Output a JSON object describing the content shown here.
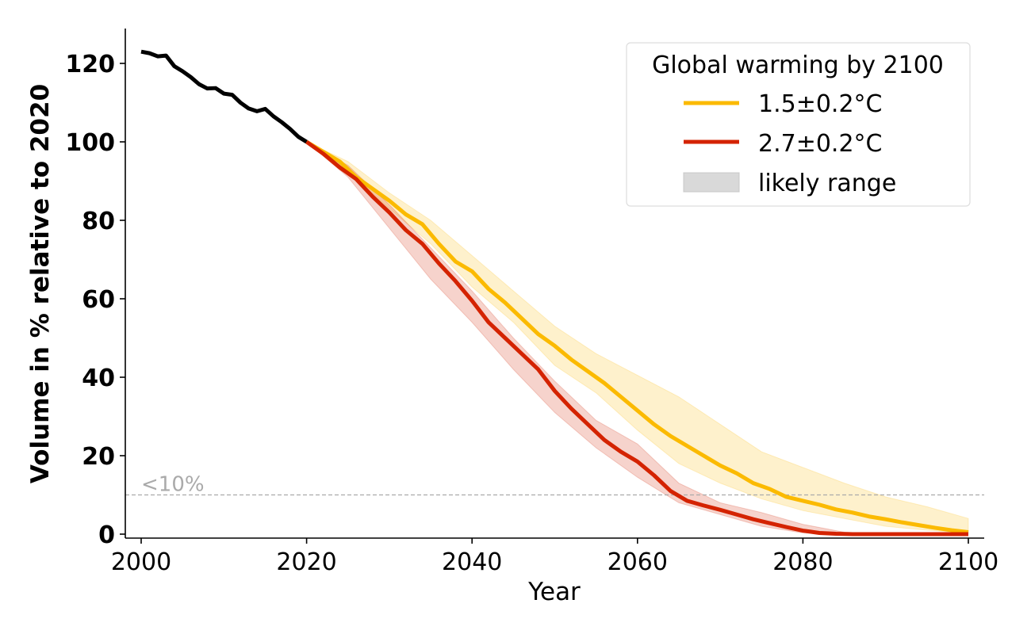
{
  "chart_data": {
    "type": "line",
    "title": "",
    "xlabel": "Year",
    "ylabel": "Volume in % relative to 2020",
    "xlim": [
      1998,
      2102
    ],
    "ylim": [
      -1,
      129
    ],
    "xticks": [
      2000,
      2020,
      2040,
      2060,
      2080,
      2100
    ],
    "yticks": [
      0,
      20,
      40,
      60,
      80,
      100,
      120
    ],
    "grid": false,
    "legend": {
      "title": "Global warming by 2100",
      "placement": "top-right",
      "entries": [
        "1.5±0.2°C",
        "2.7±0.2°C",
        "likely range"
      ]
    },
    "threshold": {
      "value": 10,
      "label": "<10%",
      "color": "#aaaaaa"
    },
    "historical": {
      "color": "#000000",
      "x": [
        2000,
        2001,
        2002,
        2003,
        2004,
        2005,
        2006,
        2007,
        2008,
        2009,
        2010,
        2011,
        2012,
        2013,
        2014,
        2015,
        2016,
        2017,
        2018,
        2019,
        2020
      ],
      "y": [
        123,
        122.6,
        121.8,
        122,
        119.3,
        118,
        116.5,
        114.7,
        113.6,
        113.7,
        112.3,
        112,
        110,
        108.5,
        107.8,
        108.4,
        106.5,
        105,
        103.3,
        101.3,
        100
      ]
    },
    "series": [
      {
        "name": "1.5±0.2°C",
        "color": "#FBBA00",
        "x": [
          2020,
          2022,
          2024,
          2026,
          2028,
          2030,
          2032,
          2034,
          2036,
          2038,
          2040,
          2042,
          2044,
          2046,
          2048,
          2050,
          2052,
          2054,
          2056,
          2058,
          2060,
          2062,
          2064,
          2066,
          2068,
          2070,
          2072,
          2074,
          2076,
          2078,
          2080,
          2082,
          2084,
          2086,
          2088,
          2090,
          2092,
          2094,
          2096,
          2098,
          2100
        ],
        "y": [
          100,
          97.5,
          95,
          91,
          88,
          85,
          81.5,
          79,
          74,
          69.5,
          67,
          62.5,
          59,
          55,
          51,
          48,
          44.5,
          41.5,
          38.5,
          35,
          31.5,
          28,
          25,
          22.5,
          20,
          17.5,
          15.5,
          13,
          11.5,
          9.5,
          8.5,
          7.5,
          6.3,
          5.5,
          4.5,
          3.8,
          3,
          2.3,
          1.6,
          1,
          0.5
        ],
        "range": {
          "x": [
            2020,
            2025,
            2030,
            2035,
            2040,
            2045,
            2050,
            2055,
            2060,
            2065,
            2070,
            2075,
            2080,
            2085,
            2090,
            2095,
            2100
          ],
          "upper": [
            100,
            95,
            87,
            80,
            71,
            62,
            53,
            46,
            40.5,
            35,
            28,
            21,
            17,
            13,
            9.5,
            7,
            4
          ],
          "lower": [
            100,
            92.5,
            83,
            74,
            63,
            54,
            43,
            36,
            26.5,
            18,
            13,
            9,
            6,
            4,
            2,
            1,
            0.2
          ]
        }
      },
      {
        "name": "2.7±0.2°C",
        "color": "#D42300",
        "x": [
          2020,
          2022,
          2024,
          2026,
          2028,
          2030,
          2032,
          2034,
          2036,
          2038,
          2040,
          2042,
          2044,
          2046,
          2048,
          2050,
          2052,
          2054,
          2056,
          2058,
          2060,
          2062,
          2064,
          2066,
          2068,
          2070,
          2072,
          2074,
          2076,
          2078,
          2080,
          2082,
          2084,
          2086,
          2088,
          2090,
          2092,
          2094,
          2096,
          2098,
          2100
        ],
        "y": [
          100,
          97,
          93.5,
          90.5,
          86,
          82,
          77.5,
          74,
          69,
          64.5,
          59.5,
          54,
          50,
          46,
          42,
          36.5,
          32,
          28,
          24,
          21,
          18.5,
          15,
          11,
          8.5,
          7.3,
          6.2,
          5,
          3.8,
          2.8,
          1.8,
          0.9,
          0.3,
          0.1,
          0,
          0,
          0,
          0,
          0,
          0,
          0,
          0
        ],
        "range": {
          "x": [
            2020,
            2025,
            2030,
            2035,
            2040,
            2045,
            2050,
            2055,
            2060,
            2065,
            2070,
            2075,
            2080,
            2085,
            2090,
            2095,
            2100
          ],
          "upper": [
            100,
            94,
            84,
            73,
            62,
            50,
            39,
            29,
            23,
            13,
            8,
            5.5,
            2.5,
            0.5,
            0,
            0,
            0
          ],
          "lower": [
            100,
            91,
            78,
            65,
            54,
            42,
            31,
            22,
            14.5,
            8,
            5,
            2,
            0.3,
            0,
            0,
            0,
            0
          ]
        }
      }
    ],
    "range_legend_color": "#d9d9d9"
  }
}
